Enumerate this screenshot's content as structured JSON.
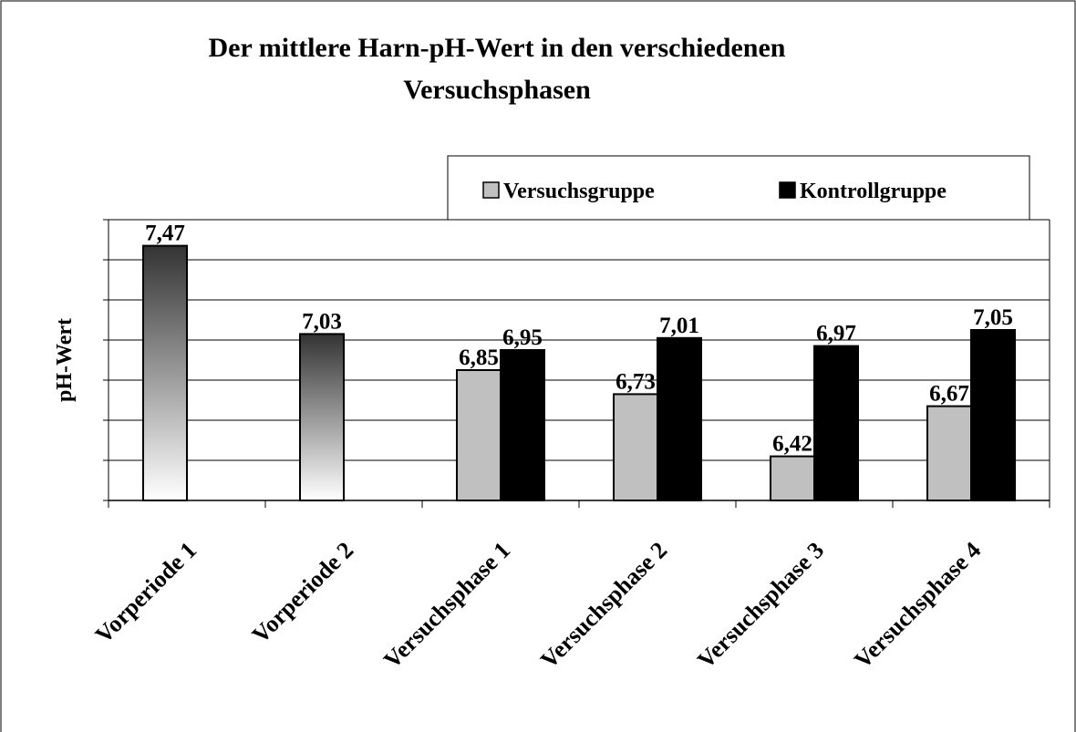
{
  "chart_data": {
    "type": "bar",
    "title": "Der mittlere Harn-pH-Wert in den verschiedenen Versuchsphasen",
    "y_label": "pH-Wert",
    "categories": [
      "Vorperiode 1",
      "Vorperiode 2",
      "Versuchsphase 1",
      "Versuchsphase 2",
      "Versuchsphase 3",
      "Versuchsphase 4"
    ],
    "series": [
      {
        "name": "Versuchsgruppe",
        "color": "#c0c0c0",
        "values": [
          null,
          null,
          6.85,
          6.73,
          6.42,
          6.67
        ],
        "value_labels": [
          null,
          null,
          "6,85",
          "6,73",
          "6,42",
          "6,67"
        ]
      },
      {
        "name": "Kontrollgruppe",
        "color": "#000000",
        "values": [
          null,
          null,
          6.95,
          7.01,
          6.97,
          7.05
        ],
        "value_labels": [
          null,
          null,
          "6,95",
          "7,01",
          "6,97",
          "7,05"
        ]
      },
      {
        "gradient": [
          "#333333",
          "#ffffff"
        ],
        "values": [
          7.47,
          7.03,
          null,
          null,
          null,
          null
        ],
        "value_labels": [
          "7,47",
          "7,03",
          null,
          null,
          null,
          null
        ]
      }
    ],
    "ylim": [
      6.2,
      7.6
    ],
    "yticks": [
      6.2,
      6.4,
      6.6,
      6.8,
      7.0,
      7.2,
      7.4,
      7.6
    ],
    "grid": true,
    "legend": "top-right"
  }
}
